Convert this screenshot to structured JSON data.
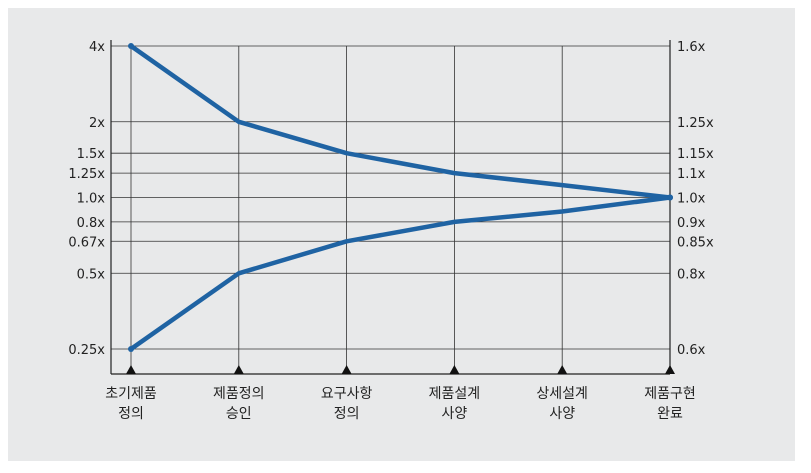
{
  "chart_data": {
    "type": "line",
    "title": "",
    "xlabel": "",
    "ylabel": "",
    "categories": [
      [
        "초기제품",
        "정의"
      ],
      [
        "제품정의",
        "승인"
      ],
      [
        "요구사항",
        "정의"
      ],
      [
        "제품설계",
        "사양"
      ],
      [
        "상세설계",
        "사양"
      ],
      [
        "제품구현",
        "완료"
      ]
    ],
    "y_scale": "log",
    "left_ticks": [
      "4x",
      "2x",
      "1.5x",
      "1.25x",
      "1.0x",
      "0.8x",
      "0.67x",
      "0.5x",
      "0.25x"
    ],
    "left_tick_values": [
      4,
      2,
      1.5,
      1.25,
      1.0,
      0.8,
      0.67,
      0.5,
      0.25
    ],
    "right_ticks": [
      "1.6x",
      "1.25x",
      "1.15x",
      "1.1x",
      "1.0x",
      "0.9x",
      "0.85x",
      "0.8x",
      "0.6x"
    ],
    "series": [
      {
        "values": [
          4,
          2,
          1.5,
          1.25,
          1.12,
          1.0
        ]
      },
      {
        "values": [
          0.25,
          0.5,
          0.67,
          0.8,
          0.88,
          1.0
        ]
      }
    ],
    "grid": true,
    "line_color": "#1f63a3",
    "grid_color": "#222222"
  }
}
